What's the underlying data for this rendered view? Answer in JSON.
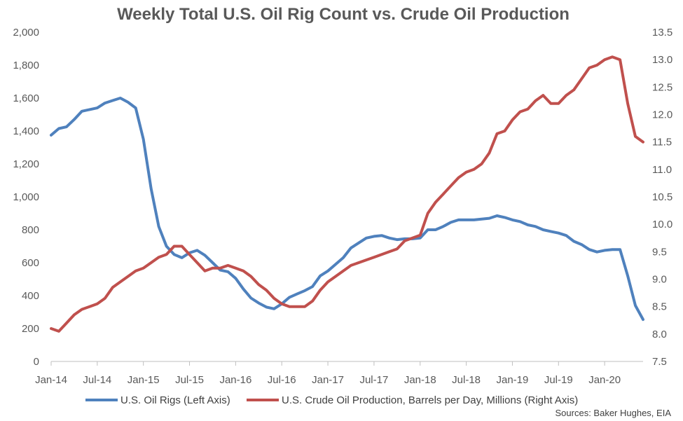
{
  "chart_data": {
    "type": "line",
    "title": "Weekly Total U.S. Oil Rig Count vs. Crude Oil Production",
    "source": "Sources: Baker Hughes, EIA",
    "x_ticks": [
      "Jan-14",
      "Jul-14",
      "Jan-15",
      "Jul-15",
      "Jan-16",
      "Jul-16",
      "Jan-17",
      "Jul-17",
      "Jan-18",
      "Jul-18",
      "Jan-19",
      "Jul-19",
      "Jan-20"
    ],
    "xlim": [
      "2014-01",
      "2020-06"
    ],
    "y_left": {
      "lim": [
        0,
        2000
      ],
      "ticks": [
        "0",
        "200",
        "400",
        "600",
        "800",
        "1,000",
        "1,200",
        "1,400",
        "1,600",
        "1,800",
        "2,000"
      ]
    },
    "y_right": {
      "lim": [
        7.5,
        13.5
      ],
      "ticks": [
        "7.5",
        "8.0",
        "8.5",
        "9.0",
        "9.5",
        "10.0",
        "10.5",
        "11.0",
        "11.5",
        "12.0",
        "12.5",
        "13.0",
        "13.5"
      ]
    },
    "grid": false,
    "legend_position": "bottom",
    "series": [
      {
        "name": "U.S. Oil Rigs (Left Axis)",
        "axis": "left",
        "color": "#4f81bd",
        "points": [
          [
            "2014-01",
            1375
          ],
          [
            "2014-02",
            1415
          ],
          [
            "2014-03",
            1425
          ],
          [
            "2014-04",
            1470
          ],
          [
            "2014-05",
            1520
          ],
          [
            "2014-06",
            1530
          ],
          [
            "2014-07",
            1540
          ],
          [
            "2014-08",
            1570
          ],
          [
            "2014-09",
            1585
          ],
          [
            "2014-10",
            1600
          ],
          [
            "2014-11",
            1575
          ],
          [
            "2014-12",
            1540
          ],
          [
            "2015-01",
            1350
          ],
          [
            "2015-02",
            1050
          ],
          [
            "2015-03",
            820
          ],
          [
            "2015-04",
            700
          ],
          [
            "2015-05",
            650
          ],
          [
            "2015-06",
            630
          ],
          [
            "2015-07",
            660
          ],
          [
            "2015-08",
            675
          ],
          [
            "2015-09",
            645
          ],
          [
            "2015-10",
            600
          ],
          [
            "2015-11",
            555
          ],
          [
            "2015-12",
            545
          ],
          [
            "2016-01",
            505
          ],
          [
            "2016-02",
            440
          ],
          [
            "2016-03",
            385
          ],
          [
            "2016-04",
            355
          ],
          [
            "2016-05",
            330
          ],
          [
            "2016-06",
            320
          ],
          [
            "2016-07",
            350
          ],
          [
            "2016-08",
            390
          ],
          [
            "2016-09",
            410
          ],
          [
            "2016-10",
            430
          ],
          [
            "2016-11",
            455
          ],
          [
            "2016-12",
            520
          ],
          [
            "2017-01",
            550
          ],
          [
            "2017-02",
            590
          ],
          [
            "2017-03",
            630
          ],
          [
            "2017-04",
            690
          ],
          [
            "2017-05",
            720
          ],
          [
            "2017-06",
            750
          ],
          [
            "2017-07",
            760
          ],
          [
            "2017-08",
            765
          ],
          [
            "2017-09",
            750
          ],
          [
            "2017-10",
            740
          ],
          [
            "2017-11",
            745
          ],
          [
            "2017-12",
            745
          ],
          [
            "2018-01",
            750
          ],
          [
            "2018-02",
            800
          ],
          [
            "2018-03",
            800
          ],
          [
            "2018-04",
            820
          ],
          [
            "2018-05",
            845
          ],
          [
            "2018-06",
            860
          ],
          [
            "2018-07",
            860
          ],
          [
            "2018-08",
            860
          ],
          [
            "2018-09",
            865
          ],
          [
            "2018-10",
            870
          ],
          [
            "2018-11",
            885
          ],
          [
            "2018-12",
            875
          ],
          [
            "2019-01",
            860
          ],
          [
            "2019-02",
            850
          ],
          [
            "2019-03",
            830
          ],
          [
            "2019-04",
            820
          ],
          [
            "2019-05",
            800
          ],
          [
            "2019-06",
            790
          ],
          [
            "2019-07",
            780
          ],
          [
            "2019-08",
            765
          ],
          [
            "2019-09",
            730
          ],
          [
            "2019-10",
            710
          ],
          [
            "2019-11",
            680
          ],
          [
            "2019-12",
            665
          ],
          [
            "2020-01",
            675
          ],
          [
            "2020-02",
            680
          ],
          [
            "2020-03",
            680
          ],
          [
            "2020-04",
            520
          ],
          [
            "2020-05",
            340
          ],
          [
            "2020-06",
            255
          ]
        ]
      },
      {
        "name": "U.S. Crude Oil Production, Barrels per Day, Millions (Right Axis)",
        "axis": "right",
        "color": "#c0504d",
        "points": [
          [
            "2014-01",
            8.1
          ],
          [
            "2014-02",
            8.05
          ],
          [
            "2014-03",
            8.2
          ],
          [
            "2014-04",
            8.35
          ],
          [
            "2014-05",
            8.45
          ],
          [
            "2014-06",
            8.5
          ],
          [
            "2014-07",
            8.55
          ],
          [
            "2014-08",
            8.65
          ],
          [
            "2014-09",
            8.85
          ],
          [
            "2014-10",
            8.95
          ],
          [
            "2014-11",
            9.05
          ],
          [
            "2014-12",
            9.15
          ],
          [
            "2015-01",
            9.2
          ],
          [
            "2015-02",
            9.3
          ],
          [
            "2015-03",
            9.4
          ],
          [
            "2015-04",
            9.45
          ],
          [
            "2015-05",
            9.6
          ],
          [
            "2015-06",
            9.6
          ],
          [
            "2015-07",
            9.45
          ],
          [
            "2015-08",
            9.3
          ],
          [
            "2015-09",
            9.15
          ],
          [
            "2015-10",
            9.2
          ],
          [
            "2015-11",
            9.2
          ],
          [
            "2015-12",
            9.25
          ],
          [
            "2016-01",
            9.2
          ],
          [
            "2016-02",
            9.15
          ],
          [
            "2016-03",
            9.05
          ],
          [
            "2016-04",
            8.9
          ],
          [
            "2016-05",
            8.8
          ],
          [
            "2016-06",
            8.65
          ],
          [
            "2016-07",
            8.55
          ],
          [
            "2016-08",
            8.5
          ],
          [
            "2016-09",
            8.5
          ],
          [
            "2016-10",
            8.5
          ],
          [
            "2016-11",
            8.6
          ],
          [
            "2016-12",
            8.8
          ],
          [
            "2017-01",
            8.95
          ],
          [
            "2017-02",
            9.05
          ],
          [
            "2017-03",
            9.15
          ],
          [
            "2017-04",
            9.25
          ],
          [
            "2017-05",
            9.3
          ],
          [
            "2017-06",
            9.35
          ],
          [
            "2017-07",
            9.4
          ],
          [
            "2017-08",
            9.45
          ],
          [
            "2017-09",
            9.5
          ],
          [
            "2017-10",
            9.55
          ],
          [
            "2017-11",
            9.7
          ],
          [
            "2017-12",
            9.75
          ],
          [
            "2018-01",
            9.8
          ],
          [
            "2018-02",
            10.2
          ],
          [
            "2018-03",
            10.4
          ],
          [
            "2018-04",
            10.55
          ],
          [
            "2018-05",
            10.7
          ],
          [
            "2018-06",
            10.85
          ],
          [
            "2018-07",
            10.95
          ],
          [
            "2018-08",
            11.0
          ],
          [
            "2018-09",
            11.1
          ],
          [
            "2018-10",
            11.3
          ],
          [
            "2018-11",
            11.65
          ],
          [
            "2018-12",
            11.7
          ],
          [
            "2019-01",
            11.9
          ],
          [
            "2019-02",
            12.05
          ],
          [
            "2019-03",
            12.1
          ],
          [
            "2019-04",
            12.25
          ],
          [
            "2019-05",
            12.35
          ],
          [
            "2019-06",
            12.2
          ],
          [
            "2019-07",
            12.2
          ],
          [
            "2019-08",
            12.35
          ],
          [
            "2019-09",
            12.45
          ],
          [
            "2019-10",
            12.65
          ],
          [
            "2019-11",
            12.85
          ],
          [
            "2019-12",
            12.9
          ],
          [
            "2020-01",
            13.0
          ],
          [
            "2020-02",
            13.05
          ],
          [
            "2020-03",
            13.0
          ],
          [
            "2020-04",
            12.2
          ],
          [
            "2020-05",
            11.6
          ],
          [
            "2020-06",
            11.5
          ]
        ]
      }
    ]
  }
}
